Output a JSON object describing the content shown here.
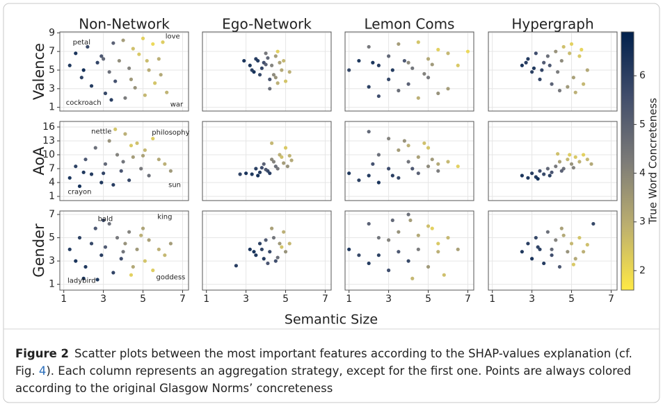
{
  "chart_data": [
    {
      "type": "scatter",
      "title": "Non-Network",
      "ylabel": "Valence",
      "xlim": [
        0.8,
        7.3
      ],
      "ylim": [
        0.6,
        9.1
      ],
      "xticks": [
        1,
        3,
        5,
        7
      ],
      "yticks": [
        1,
        3,
        5,
        7,
        9
      ],
      "x": [
        1.3,
        1.6,
        1.9,
        2.2,
        2.4,
        2.7,
        2.9,
        3.1,
        3.3,
        3.5,
        3.6,
        3.8,
        4.0,
        4.1,
        4.3,
        4.5,
        4.6,
        4.8,
        5.0,
        5.1,
        5.3,
        5.5,
        5.6,
        5.8,
        6.0,
        6.2,
        2.0,
        3.0,
        4.4,
        5.2,
        5.9,
        3.4
      ],
      "y": [
        5.5,
        6.8,
        4.2,
        7.5,
        3.3,
        5.8,
        6.5,
        2.5,
        4.8,
        7.9,
        3.8,
        6.0,
        8.2,
        2.0,
        5.2,
        7.3,
        3.1,
        6.7,
        8.4,
        2.3,
        5.0,
        7.8,
        3.6,
        6.2,
        8.0,
        2.6,
        5.0,
        6.2,
        4.0,
        6.0,
        4.5,
        1.8
      ],
      "c": [
        6.5,
        6.6,
        6.2,
        5.9,
        6.4,
        6.1,
        5.5,
        6.0,
        4.8,
        5.2,
        5.7,
        3.9,
        3.5,
        4.4,
        4.2,
        2.6,
        3.8,
        2.4,
        2.2,
        2.8,
        3.1,
        2.0,
        2.5,
        3.0,
        2.3,
        2.9,
        6.8,
        5.0,
        3.6,
        2.7,
        3.2,
        6.3
      ],
      "annotations": [
        {
          "text": "petal",
          "x": 1.9,
          "y": 8.0
        },
        {
          "text": "love",
          "x": 6.5,
          "y": 8.6
        },
        {
          "text": "cockroach",
          "x": 2.0,
          "y": 1.5
        },
        {
          "text": "war",
          "x": 6.7,
          "y": 1.3
        }
      ]
    },
    {
      "type": "scatter",
      "title": "Ego-Network",
      "xlim": [
        0.8,
        7.3
      ],
      "ylim": [
        0.6,
        9.1
      ],
      "xticks": [
        1,
        3,
        5,
        7
      ],
      "yticks": [
        1,
        3,
        5,
        7,
        9
      ],
      "x": [
        3.2,
        3.5,
        3.7,
        3.9,
        4.0,
        4.2,
        4.3,
        4.5,
        4.6,
        4.8,
        4.9,
        3.4,
        3.8,
        4.1,
        4.4,
        4.7,
        5.0,
        3.6,
        4.2,
        4.6,
        5.2,
        2.9,
        4.0,
        4.5,
        3.3
      ],
      "y": [
        5.5,
        6.2,
        4.5,
        5.8,
        6.8,
        4.0,
        5.5,
        6.5,
        3.6,
        5.0,
        6.0,
        4.8,
        5.2,
        6.3,
        4.5,
        5.8,
        3.8,
        6.0,
        3.0,
        7.0,
        4.8,
        6.0,
        5.6,
        4.2,
        5.0
      ],
      "c": [
        6.5,
        6.3,
        6.0,
        5.8,
        4.5,
        5.5,
        4.2,
        3.5,
        3.0,
        3.2,
        2.8,
        6.7,
        6.1,
        5.0,
        4.0,
        3.4,
        2.5,
        6.4,
        4.8,
        2.2,
        3.0,
        6.6,
        5.2,
        3.8,
        6.2
      ]
    },
    {
      "type": "scatter",
      "title": "Lemon Coms",
      "xlim": [
        0.8,
        7.3
      ],
      "ylim": [
        0.6,
        9.1
      ],
      "xticks": [
        1,
        3,
        5,
        7
      ],
      "yticks": [
        1,
        3,
        5,
        7,
        9
      ],
      "x": [
        1.0,
        1.5,
        2.0,
        2.0,
        2.5,
        2.5,
        3.0,
        3.0,
        3.5,
        3.5,
        4.0,
        4.0,
        4.5,
        4.5,
        5.0,
        5.0,
        5.5,
        5.5,
        6.0,
        6.0,
        6.5,
        7.0,
        3.2,
        4.2,
        5.2,
        2.2,
        3.8,
        4.8
      ],
      "y": [
        5.0,
        6.0,
        7.5,
        3.2,
        5.5,
        2.2,
        6.5,
        4.0,
        7.8,
        2.8,
        5.8,
        3.5,
        8.0,
        2.0,
        6.2,
        4.2,
        7.2,
        2.5,
        6.8,
        3.0,
        5.5,
        7.0,
        5.0,
        5.2,
        5.6,
        5.8,
        6.0,
        4.6
      ],
      "c": [
        6.0,
        6.5,
        4.5,
        6.2,
        6.3,
        5.8,
        5.0,
        6.0,
        3.5,
        4.8,
        4.0,
        5.2,
        2.5,
        3.0,
        3.2,
        4.5,
        2.2,
        3.8,
        2.8,
        3.5,
        2.4,
        2.0,
        6.4,
        4.6,
        3.6,
        6.6,
        5.5,
        4.2
      ]
    },
    {
      "type": "scatter",
      "title": "Hypergraph",
      "xlim": [
        0.8,
        7.3
      ],
      "ylim": [
        0.6,
        9.1
      ],
      "xticks": [
        1,
        3,
        5,
        7
      ],
      "yticks": [
        1,
        3,
        5,
        7,
        9
      ],
      "x": [
        2.5,
        2.8,
        3.0,
        3.2,
        3.4,
        3.6,
        3.8,
        4.0,
        4.2,
        4.4,
        4.6,
        4.8,
        5.0,
        5.2,
        5.4,
        5.6,
        5.8,
        3.1,
        3.9,
        4.5,
        5.1,
        5.5,
        4.3,
        3.5,
        4.9,
        2.7
      ],
      "y": [
        5.5,
        6.2,
        4.8,
        6.8,
        4.0,
        5.8,
        6.5,
        3.5,
        7.0,
        2.8,
        7.5,
        3.2,
        7.8,
        2.6,
        6.5,
        3.5,
        5.0,
        5.2,
        5.5,
        6.0,
        4.2,
        7.2,
        4.8,
        5.0,
        6.8,
        5.8
      ],
      "c": [
        6.6,
        6.4,
        6.2,
        5.8,
        6.0,
        5.4,
        4.8,
        5.2,
        3.8,
        4.5,
        2.6,
        3.6,
        2.2,
        3.0,
        2.4,
        2.8,
        3.2,
        6.5,
        5.5,
        4.0,
        3.4,
        2.1,
        4.4,
        6.1,
        2.7,
        6.3
      ]
    },
    {
      "type": "scatter",
      "ylabel": "AoA",
      "xlim": [
        0.8,
        7.3
      ],
      "ylim": [
        0.1,
        17.2
      ],
      "xticks": [
        1,
        3,
        5,
        7
      ],
      "yticks": [
        1,
        4,
        7,
        10,
        13,
        16
      ],
      "x": [
        1.3,
        1.6,
        1.8,
        2.1,
        2.4,
        2.6,
        2.9,
        3.1,
        3.3,
        3.5,
        3.7,
        3.9,
        4.1,
        4.3,
        4.5,
        4.7,
        4.9,
        5.1,
        5.3,
        5.5,
        5.8,
        6.1,
        6.4,
        2.0,
        3.0,
        4.0,
        5.0,
        3.6,
        4.4
      ],
      "y": [
        5.0,
        7.5,
        3.2,
        9.0,
        5.8,
        11.5,
        4.0,
        8.0,
        13.0,
        3.5,
        10.0,
        6.5,
        14.5,
        4.5,
        9.5,
        12.5,
        7.0,
        11.0,
        5.5,
        13.5,
        9.0,
        8.0,
        6.5,
        6.2,
        6.0,
        8.5,
        9.8,
        15.5,
        12.0
      ],
      "c": [
        6.6,
        6.2,
        6.7,
        5.5,
        6.4,
        4.8,
        6.5,
        5.0,
        3.8,
        6.3,
        4.2,
        5.6,
        3.0,
        6.0,
        3.5,
        2.6,
        4.5,
        2.8,
        4.8,
        2.3,
        3.2,
        3.0,
        3.6,
        6.5,
        6.1,
        4.6,
        3.4,
        2.5,
        2.4
      ],
      "annotations": [
        {
          "text": "nettle",
          "x": 2.9,
          "y": 15.0
        },
        {
          "text": "philosophy",
          "x": 6.4,
          "y": 14.8
        },
        {
          "text": "crayon",
          "x": 1.8,
          "y": 2.0
        },
        {
          "text": "sun",
          "x": 6.6,
          "y": 3.5
        }
      ]
    },
    {
      "type": "scatter",
      "xlim": [
        0.8,
        7.3
      ],
      "ylim": [
        0.1,
        17.2
      ],
      "xticks": [
        1,
        3,
        5,
        7
      ],
      "yticks": [
        1,
        4,
        7,
        10,
        13,
        16
      ],
      "x": [
        3.0,
        3.3,
        3.5,
        3.7,
        3.9,
        4.1,
        4.3,
        4.5,
        4.7,
        4.9,
        5.1,
        5.3,
        3.6,
        4.0,
        4.4,
        4.8,
        5.0,
        3.8,
        4.2,
        4.6,
        2.7,
        4.3,
        5.2
      ],
      "y": [
        6.0,
        5.8,
        7.0,
        6.2,
        8.0,
        6.5,
        9.0,
        7.5,
        10.0,
        8.2,
        7.5,
        8.8,
        5.5,
        6.8,
        8.5,
        9.5,
        11.5,
        7.2,
        6.0,
        7.0,
        5.8,
        12.5,
        9.8
      ],
      "c": [
        6.6,
        6.5,
        6.2,
        6.4,
        5.2,
        6.0,
        4.0,
        4.8,
        3.0,
        3.5,
        3.8,
        3.2,
        6.7,
        5.5,
        4.2,
        2.6,
        2.4,
        5.8,
        6.3,
        4.5,
        6.1,
        2.8,
        2.9
      ]
    },
    {
      "type": "scatter",
      "xlim": [
        0.8,
        7.3
      ],
      "ylim": [
        0.1,
        17.2
      ],
      "xticks": [
        1,
        3,
        5,
        7
      ],
      "yticks": [
        1,
        4,
        7,
        10,
        13,
        16
      ],
      "x": [
        1.0,
        1.5,
        2.0,
        2.0,
        2.5,
        2.5,
        3.0,
        3.0,
        3.5,
        3.5,
        4.0,
        4.0,
        4.5,
        4.5,
        5.0,
        5.0,
        5.5,
        5.5,
        6.0,
        6.5,
        3.2,
        4.2,
        5.2,
        2.2,
        3.8,
        4.8
      ],
      "y": [
        6.0,
        4.5,
        15.0,
        5.5,
        10.0,
        4.0,
        13.5,
        7.0,
        11.0,
        5.0,
        8.5,
        12.0,
        6.0,
        9.5,
        7.5,
        11.5,
        8.0,
        6.5,
        8.5,
        7.5,
        5.5,
        7.0,
        9.0,
        8.0,
        13.0,
        12.5
      ],
      "c": [
        6.5,
        6.2,
        5.0,
        6.4,
        4.8,
        6.6,
        4.2,
        5.8,
        3.5,
        6.0,
        4.6,
        3.0,
        5.2,
        3.4,
        4.0,
        2.5,
        3.2,
        4.4,
        2.8,
        2.2,
        6.3,
        5.5,
        3.6,
        5.7,
        3.8,
        2.6
      ]
    },
    {
      "type": "scatter",
      "xlim": [
        0.8,
        7.3
      ],
      "ylim": [
        0.1,
        17.2
      ],
      "xticks": [
        1,
        3,
        5,
        7
      ],
      "yticks": [
        1,
        4,
        7,
        10,
        13,
        16
      ],
      "x": [
        2.5,
        2.8,
        3.0,
        3.2,
        3.4,
        3.6,
        3.8,
        4.0,
        4.2,
        4.4,
        4.6,
        4.8,
        5.0,
        5.2,
        5.4,
        5.6,
        5.8,
        3.3,
        3.9,
        4.5,
        5.1,
        4.3,
        4.9,
        6.0
      ],
      "y": [
        5.5,
        5.0,
        6.0,
        5.2,
        6.5,
        5.8,
        7.0,
        6.2,
        7.5,
        8.5,
        7.0,
        9.0,
        8.0,
        9.5,
        8.5,
        10.0,
        9.0,
        4.8,
        5.5,
        6.5,
        7.2,
        10.2,
        10.0,
        8.0
      ],
      "c": [
        6.6,
        6.5,
        6.3,
        6.4,
        5.8,
        6.0,
        5.0,
        5.6,
        4.5,
        3.4,
        4.8,
        2.8,
        3.8,
        2.4,
        3.0,
        2.2,
        2.8,
        6.7,
        6.2,
        5.2,
        4.2,
        2.6,
        2.3,
        3.2
      ]
    },
    {
      "type": "scatter",
      "ylabel": "Gender",
      "xlim": [
        0.8,
        7.3
      ],
      "ylim": [
        0.5,
        7.3
      ],
      "xticks": [
        1,
        3,
        5,
        7
      ],
      "yticks": [
        1,
        3,
        5,
        7
      ],
      "x": [
        1.3,
        1.6,
        1.8,
        2.1,
        2.4,
        2.6,
        2.9,
        3.1,
        3.3,
        3.5,
        3.7,
        3.9,
        4.1,
        4.3,
        4.5,
        4.7,
        4.9,
        5.1,
        5.3,
        5.5,
        5.8,
        6.1,
        6.4,
        2.0,
        3.0,
        4.0,
        5.0,
        4.4,
        2.7
      ],
      "y": [
        4.0,
        3.0,
        5.0,
        2.5,
        4.5,
        5.8,
        3.5,
        4.2,
        6.2,
        2.0,
        5.0,
        3.2,
        4.5,
        5.5,
        2.5,
        4.0,
        5.2,
        3.0,
        4.8,
        2.2,
        4.0,
        3.5,
        4.5,
        1.5,
        6.5,
        3.8,
        5.8,
        1.8,
        1.4
      ],
      "c": [
        6.4,
        6.6,
        6.2,
        6.5,
        6.0,
        5.5,
        6.3,
        5.4,
        4.8,
        6.1,
        4.5,
        5.8,
        3.8,
        4.2,
        3.2,
        3.6,
        3.0,
        2.5,
        3.4,
        2.3,
        3.0,
        2.8,
        3.5,
        6.6,
        5.9,
        4.6,
        3.3,
        2.2,
        6.5
      ],
      "annotations": [
        {
          "text": "bald",
          "x": 3.1,
          "y": 6.6
        },
        {
          "text": "king",
          "x": 6.1,
          "y": 6.8
        },
        {
          "text": "ladybird",
          "x": 1.9,
          "y": 1.3
        },
        {
          "text": "goddess",
          "x": 6.4,
          "y": 1.6
        }
      ]
    },
    {
      "type": "scatter",
      "xlim": [
        0.8,
        7.3
      ],
      "ylim": [
        0.5,
        7.3
      ],
      "xticks": [
        1,
        3,
        5,
        7
      ],
      "yticks": [
        1,
        3,
        5,
        7
      ],
      "x": [
        3.2,
        3.5,
        3.7,
        3.9,
        4.0,
        4.2,
        4.4,
        4.5,
        4.7,
        4.9,
        5.0,
        5.2,
        3.8,
        4.3,
        4.6,
        4.8,
        3.4,
        4.1,
        2.5
      ],
      "y": [
        4.0,
        3.5,
        4.5,
        3.2,
        4.8,
        3.8,
        5.0,
        3.0,
        4.5,
        5.5,
        3.8,
        4.5,
        4.0,
        5.8,
        3.3,
        4.2,
        3.8,
        2.8,
        2.6
      ],
      "c": [
        6.6,
        6.5,
        6.2,
        6.4,
        5.4,
        6.0,
        4.6,
        5.8,
        3.6,
        3.0,
        3.8,
        2.8,
        6.1,
        3.4,
        4.8,
        2.5,
        6.7,
        5.6,
        6.3
      ]
    },
    {
      "type": "scatter",
      "xlim": [
        0.8,
        7.3
      ],
      "ylim": [
        0.5,
        7.3
      ],
      "xticks": [
        1,
        3,
        5,
        7
      ],
      "yticks": [
        1,
        3,
        5,
        7
      ],
      "x": [
        1.0,
        1.5,
        2.0,
        2.0,
        2.5,
        2.5,
        3.0,
        3.0,
        3.5,
        3.5,
        4.0,
        4.0,
        4.5,
        4.5,
        5.0,
        5.0,
        5.5,
        5.5,
        6.0,
        6.5,
        3.2,
        4.2,
        5.2,
        4.1,
        5.8
      ],
      "y": [
        4.0,
        3.5,
        6.2,
        2.8,
        5.0,
        3.5,
        4.8,
        2.2,
        5.5,
        3.8,
        7.0,
        3.0,
        5.2,
        4.0,
        6.0,
        2.5,
        4.5,
        3.8,
        5.0,
        4.0,
        6.5,
        1.5,
        5.8,
        6.5,
        1.8
      ],
      "c": [
        6.5,
        6.0,
        5.2,
        6.4,
        4.6,
        6.2,
        4.2,
        5.8,
        3.8,
        5.5,
        4.8,
        6.0,
        3.2,
        4.4,
        2.6,
        3.6,
        2.4,
        3.0,
        2.8,
        3.4,
        5.0,
        2.8,
        2.2,
        3.5,
        2.6
      ]
    },
    {
      "type": "scatter",
      "xlim": [
        0.8,
        7.3
      ],
      "ylim": [
        0.5,
        7.3
      ],
      "xticks": [
        1,
        3,
        5,
        7
      ],
      "yticks": [
        1,
        3,
        5,
        7
      ],
      "x": [
        2.5,
        2.8,
        3.0,
        3.2,
        3.4,
        3.6,
        3.8,
        4.0,
        4.2,
        4.4,
        4.6,
        4.8,
        5.0,
        5.2,
        5.4,
        5.6,
        5.8,
        3.3,
        4.5,
        5.1,
        6.1,
        4.0
      ],
      "y": [
        3.8,
        4.5,
        3.2,
        5.0,
        4.0,
        2.8,
        5.5,
        3.5,
        4.8,
        2.5,
        5.2,
        3.8,
        4.5,
        3.2,
        5.0,
        3.8,
        4.4,
        4.2,
        5.8,
        2.7,
        6.2,
        4.0
      ],
      "c": [
        6.5,
        6.3,
        6.6,
        6.0,
        6.2,
        6.4,
        4.8,
        5.8,
        4.2,
        5.5,
        3.2,
        3.8,
        2.8,
        3.2,
        2.5,
        3.0,
        2.6,
        6.1,
        3.4,
        2.4,
        6.0,
        5.0
      ]
    }
  ],
  "x_label": "Semantic Size",
  "colorbar": {
    "label": "True Word Concreteness",
    "lim": [
      1.6,
      6.9
    ],
    "ticks": [
      2,
      3,
      4,
      5,
      6
    ],
    "colors": [
      "#ffe945",
      "#bcaf6f",
      "#7c7b78",
      "#414d6b",
      "#00204c"
    ]
  },
  "caption": {
    "label": "Figure 2",
    "text_before": "Scatter plots between the most important features according to the SHAP-values explanation (cf. Fig. ",
    "link": "4",
    "text_after": "). Each column represents an aggregation strategy, except for the first one. Points are always colored according to the original Glasgow Norms’ concreteness"
  }
}
